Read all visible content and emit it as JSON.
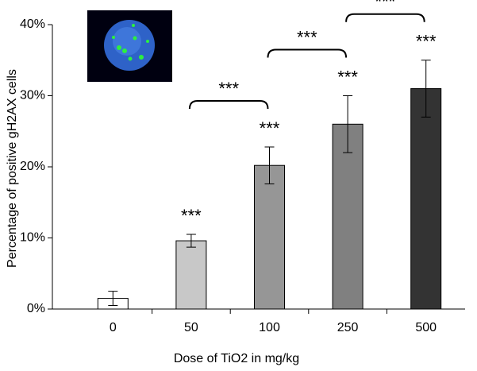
{
  "chart_data": {
    "type": "bar",
    "x_label": "Dose of TiO2 in mg/kg",
    "y_label": "Percentage of positive gH2AX cells",
    "categories": [
      "0",
      "50",
      "100",
      "250",
      "500"
    ],
    "values": [
      1.5,
      9.6,
      20.2,
      26.0,
      31.0
    ],
    "errors": [
      1.0,
      0.9,
      2.6,
      4.0,
      4.0
    ],
    "colors": [
      "#ffffff",
      "#c8c8c8",
      "#969696",
      "#808080",
      "#333333"
    ],
    "ylim": [
      0,
      40
    ],
    "yticks": [
      {
        "value": 0,
        "label": "0%"
      },
      {
        "value": 10,
        "label": "10%"
      },
      {
        "value": 20,
        "label": "20%"
      },
      {
        "value": 30,
        "label": "30%"
      },
      {
        "value": 40,
        "label": "40%"
      }
    ],
    "annotations": [
      {
        "category": "50",
        "text": "***"
      },
      {
        "category": "100",
        "text": "***"
      },
      {
        "category": "250",
        "text": "***"
      },
      {
        "category": "500",
        "text": "***"
      }
    ],
    "brackets": [
      {
        "from": "50",
        "to": "100",
        "text": "***"
      },
      {
        "from": "100",
        "to": "250",
        "text": "***"
      },
      {
        "from": "250",
        "to": "500",
        "text": "***"
      }
    ]
  }
}
